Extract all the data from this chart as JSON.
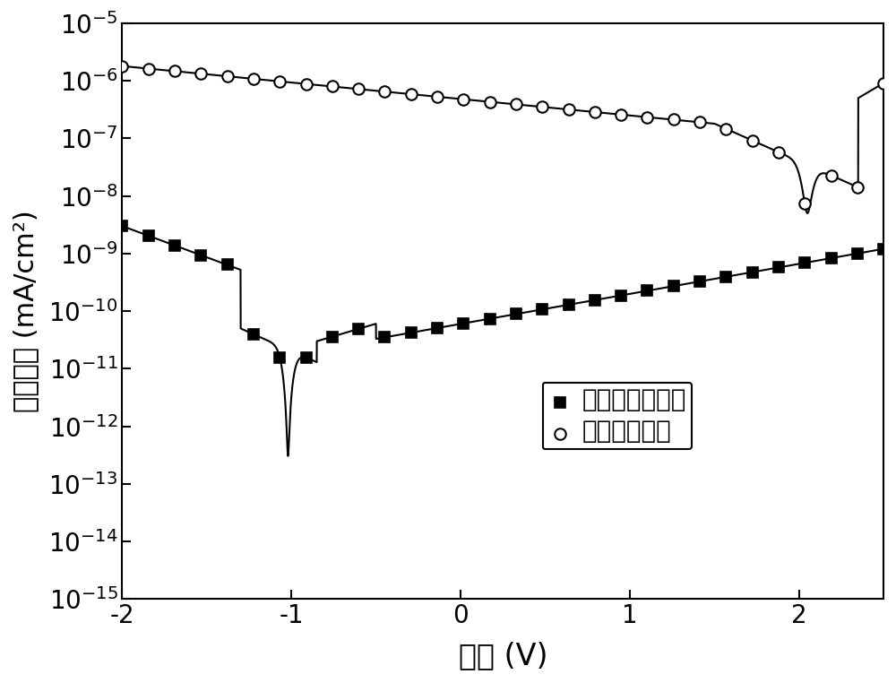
{
  "xlabel": "电压 (V)",
  "ylabel": "电流密度 (mA/cm²)",
  "xlim": [
    -2,
    2.5
  ],
  "ylim_low": 1e-15,
  "ylim_high": 1e-05,
  "legend1": "无紫外光光照射",
  "legend2": "有紫外光照射",
  "background_color": "#ffffff",
  "line_color": "#000000",
  "xlabel_fontsize": 24,
  "ylabel_fontsize": 22,
  "legend_fontsize": 20,
  "tick_fontsize": 20
}
